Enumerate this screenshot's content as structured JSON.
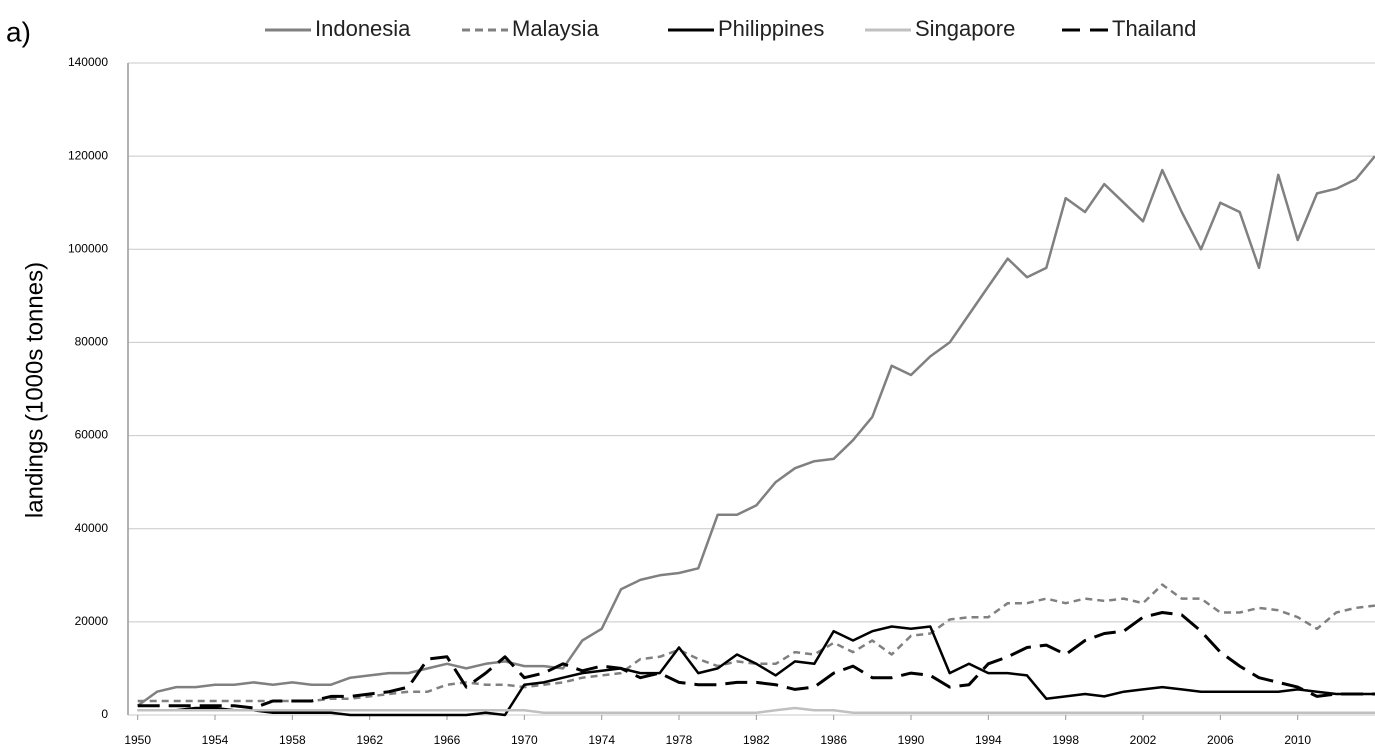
{
  "chart_data": {
    "type": "line",
    "panel_label": "a)",
    "y_label": "landings (1000s tonnes)",
    "x": [
      1950,
      1951,
      1952,
      1953,
      1954,
      1955,
      1956,
      1957,
      1958,
      1959,
      1960,
      1961,
      1962,
      1963,
      1964,
      1965,
      1966,
      1967,
      1968,
      1969,
      1970,
      1971,
      1972,
      1973,
      1974,
      1975,
      1976,
      1977,
      1978,
      1979,
      1980,
      1981,
      1982,
      1983,
      1984,
      1985,
      1986,
      1987,
      1988,
      1989,
      1990,
      1991,
      1992,
      1993,
      1994,
      1995,
      1996,
      1997,
      1998,
      1999,
      2000,
      2001,
      2002,
      2003,
      2004,
      2005,
      2006,
      2007,
      2008,
      2009,
      2010,
      2011,
      2012,
      2013,
      2014
    ],
    "xlim": [
      1949.5,
      2014
    ],
    "xticks": [
      1950,
      1954,
      1958,
      1962,
      1966,
      1970,
      1974,
      1978,
      1982,
      1986,
      1990,
      1994,
      1998,
      2002,
      2006,
      2010
    ],
    "ylim": [
      0,
      140000
    ],
    "yticks": [
      0,
      20000,
      40000,
      60000,
      80000,
      100000,
      120000,
      140000
    ],
    "grid": true,
    "legend": "top",
    "series": [
      {
        "name": "Indonesia",
        "color": "#808080",
        "line_style": "solid",
        "values": [
          2000,
          5000,
          6000,
          6000,
          6500,
          6500,
          7000,
          6500,
          7000,
          6500,
          6500,
          8000,
          8500,
          9000,
          9000,
          10000,
          11000,
          10000,
          11000,
          11500,
          10500,
          10500,
          10000,
          16000,
          18500,
          27000,
          29000,
          30000,
          30500,
          31500,
          43000,
          43000,
          45000,
          50000,
          53000,
          54500,
          55000,
          59000,
          64000,
          75000,
          73000,
          77000,
          80000,
          86000,
          92000,
          98000,
          94000,
          96000,
          111000,
          108000,
          114000,
          110000,
          106000,
          117000,
          108000,
          100000,
          110000,
          108000,
          96000,
          116000,
          102000,
          112000,
          113000,
          115000,
          120000
        ]
      },
      {
        "name": "Malaysia",
        "color": "#808080",
        "line_style": "dashed",
        "values": [
          3000,
          3000,
          3000,
          3000,
          3000,
          3000,
          3000,
          3000,
          3000,
          3000,
          3500,
          3500,
          4000,
          4500,
          5000,
          5000,
          6500,
          7000,
          6500,
          6500,
          6000,
          6500,
          7000,
          8000,
          8500,
          9000,
          12000,
          12500,
          14000,
          12000,
          10500,
          11500,
          11000,
          11000,
          13500,
          13000,
          15500,
          13500,
          16000,
          13000,
          17000,
          17500,
          20500,
          21000,
          21000,
          24000,
          24000,
          25000,
          24000,
          25000,
          24500,
          25000,
          24000,
          28000,
          25000,
          25000,
          22000,
          22000,
          23000,
          22500,
          21000,
          18500,
          22000,
          23000,
          23500
        ]
      },
      {
        "name": "Philippines",
        "color": "#000000",
        "line_style": "solid",
        "values": [
          1000,
          1000,
          1000,
          1500,
          1500,
          1000,
          1000,
          500,
          500,
          500,
          500,
          0,
          0,
          0,
          0,
          0,
          0,
          0,
          500,
          0,
          6500,
          7000,
          8000,
          9000,
          9500,
          10000,
          9000,
          9000,
          14500,
          9000,
          10000,
          13000,
          11000,
          8500,
          11500,
          11000,
          18000,
          16000,
          18000,
          19000,
          18500,
          19000,
          9000,
          11000,
          9000,
          9000,
          8500,
          3500,
          4000,
          4500,
          4000,
          5000,
          5500,
          6000,
          5500,
          5000,
          5000,
          5000,
          5000,
          5000,
          5500,
          5000,
          4500,
          4500,
          4500
        ]
      },
      {
        "name": "Singapore",
        "color": "#c0c0c0",
        "line_style": "solid",
        "values": [
          1000,
          1000,
          1000,
          1000,
          1000,
          1000,
          1000,
          1000,
          1000,
          1000,
          1000,
          1000,
          1000,
          1000,
          1000,
          1000,
          1000,
          1000,
          1000,
          1000,
          1000,
          500,
          500,
          500,
          500,
          500,
          500,
          500,
          500,
          500,
          500,
          500,
          500,
          1000,
          1500,
          1000,
          1000,
          500,
          500,
          500,
          500,
          500,
          500,
          500,
          500,
          500,
          500,
          500,
          500,
          500,
          500,
          500,
          500,
          500,
          500,
          500,
          500,
          500,
          500,
          500,
          500,
          500,
          500,
          500,
          500
        ]
      },
      {
        "name": "Thailand",
        "color": "#000000",
        "line_style": "long-dashed",
        "values": [
          2000,
          2000,
          2000,
          2000,
          2000,
          2000,
          1500,
          3000,
          3000,
          3000,
          4000,
          4000,
          4500,
          5000,
          6000,
          12000,
          12500,
          6000,
          9000,
          12500,
          8000,
          9000,
          11000,
          9500,
          10500,
          10000,
          8000,
          9000,
          7000,
          6500,
          6500,
          7000,
          7000,
          6500,
          5500,
          6000,
          9000,
          10500,
          8000,
          8000,
          9000,
          8500,
          6000,
          6500,
          11000,
          12500,
          14500,
          15000,
          13000,
          16000,
          17500,
          18000,
          21000,
          22000,
          21500,
          18000,
          13500,
          10500,
          8000,
          7000,
          6000,
          4000,
          4500,
          4500,
          4500
        ]
      }
    ]
  }
}
